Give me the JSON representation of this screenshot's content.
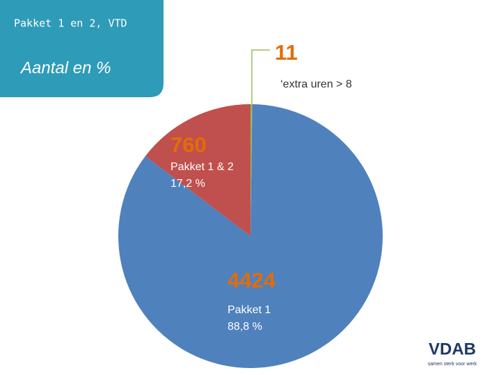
{
  "chart_data": {
    "type": "pie",
    "title": "Pakket 1 en 2, VTD",
    "subtitle": "Aantal en %",
    "categories": [
      "‘extra uren > 8",
      "Pakket 1",
      "Pakket 1 & 2"
    ],
    "values": [
      11,
      4424,
      760
    ],
    "percent_labels": [
      null,
      "88,8 %",
      "17,2 %"
    ],
    "colors": [
      "#9bbb59",
      "#4f81bd",
      "#c0504d"
    ]
  },
  "logo": {
    "name": "VDAB",
    "tagline": "samen sterk voor werk"
  }
}
